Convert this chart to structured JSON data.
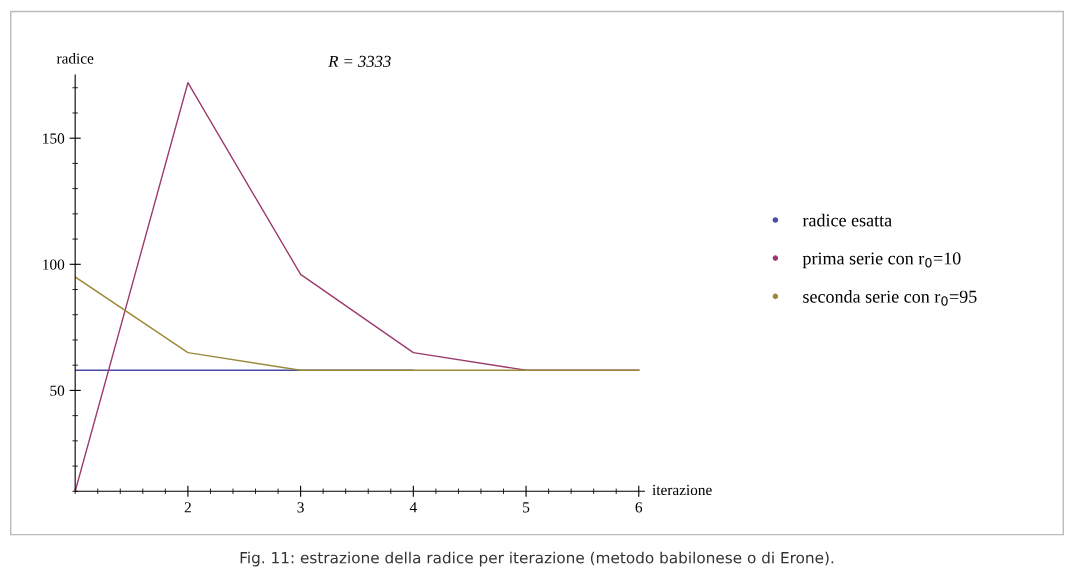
{
  "chart_data": {
    "type": "line",
    "title": "R = 3333",
    "xlabel": "iterazione",
    "ylabel": "radice",
    "x": [
      1,
      2,
      3,
      4,
      5,
      6
    ],
    "series": [
      {
        "name": "radice esatta",
        "color": "#4a4aa8",
        "values": [
          58,
          58,
          58,
          58,
          null,
          null
        ]
      },
      {
        "name": "prima serie con r$_{0}$=10",
        "color": "#9c3a6e",
        "values": [
          10,
          172,
          96,
          65,
          58,
          58
        ]
      },
      {
        "name": "seconda serie con r$_{0}$=95",
        "color": "#9a8a3a",
        "values": [
          95,
          65,
          58,
          58,
          58,
          58
        ]
      }
    ],
    "xlim": [
      1,
      6.05
    ],
    "ylim": [
      10,
      175
    ],
    "xticks": [
      2,
      3,
      4,
      5,
      6
    ],
    "yticks": [
      50,
      100,
      150
    ],
    "grid": false,
    "legend": "right",
    "marker": "none",
    "line_style": "solid",
    "annotations": [
      "Fig. 11: estrazione della radice per iterazione (metodo babilonese o di Erone)."
    ]
  }
}
